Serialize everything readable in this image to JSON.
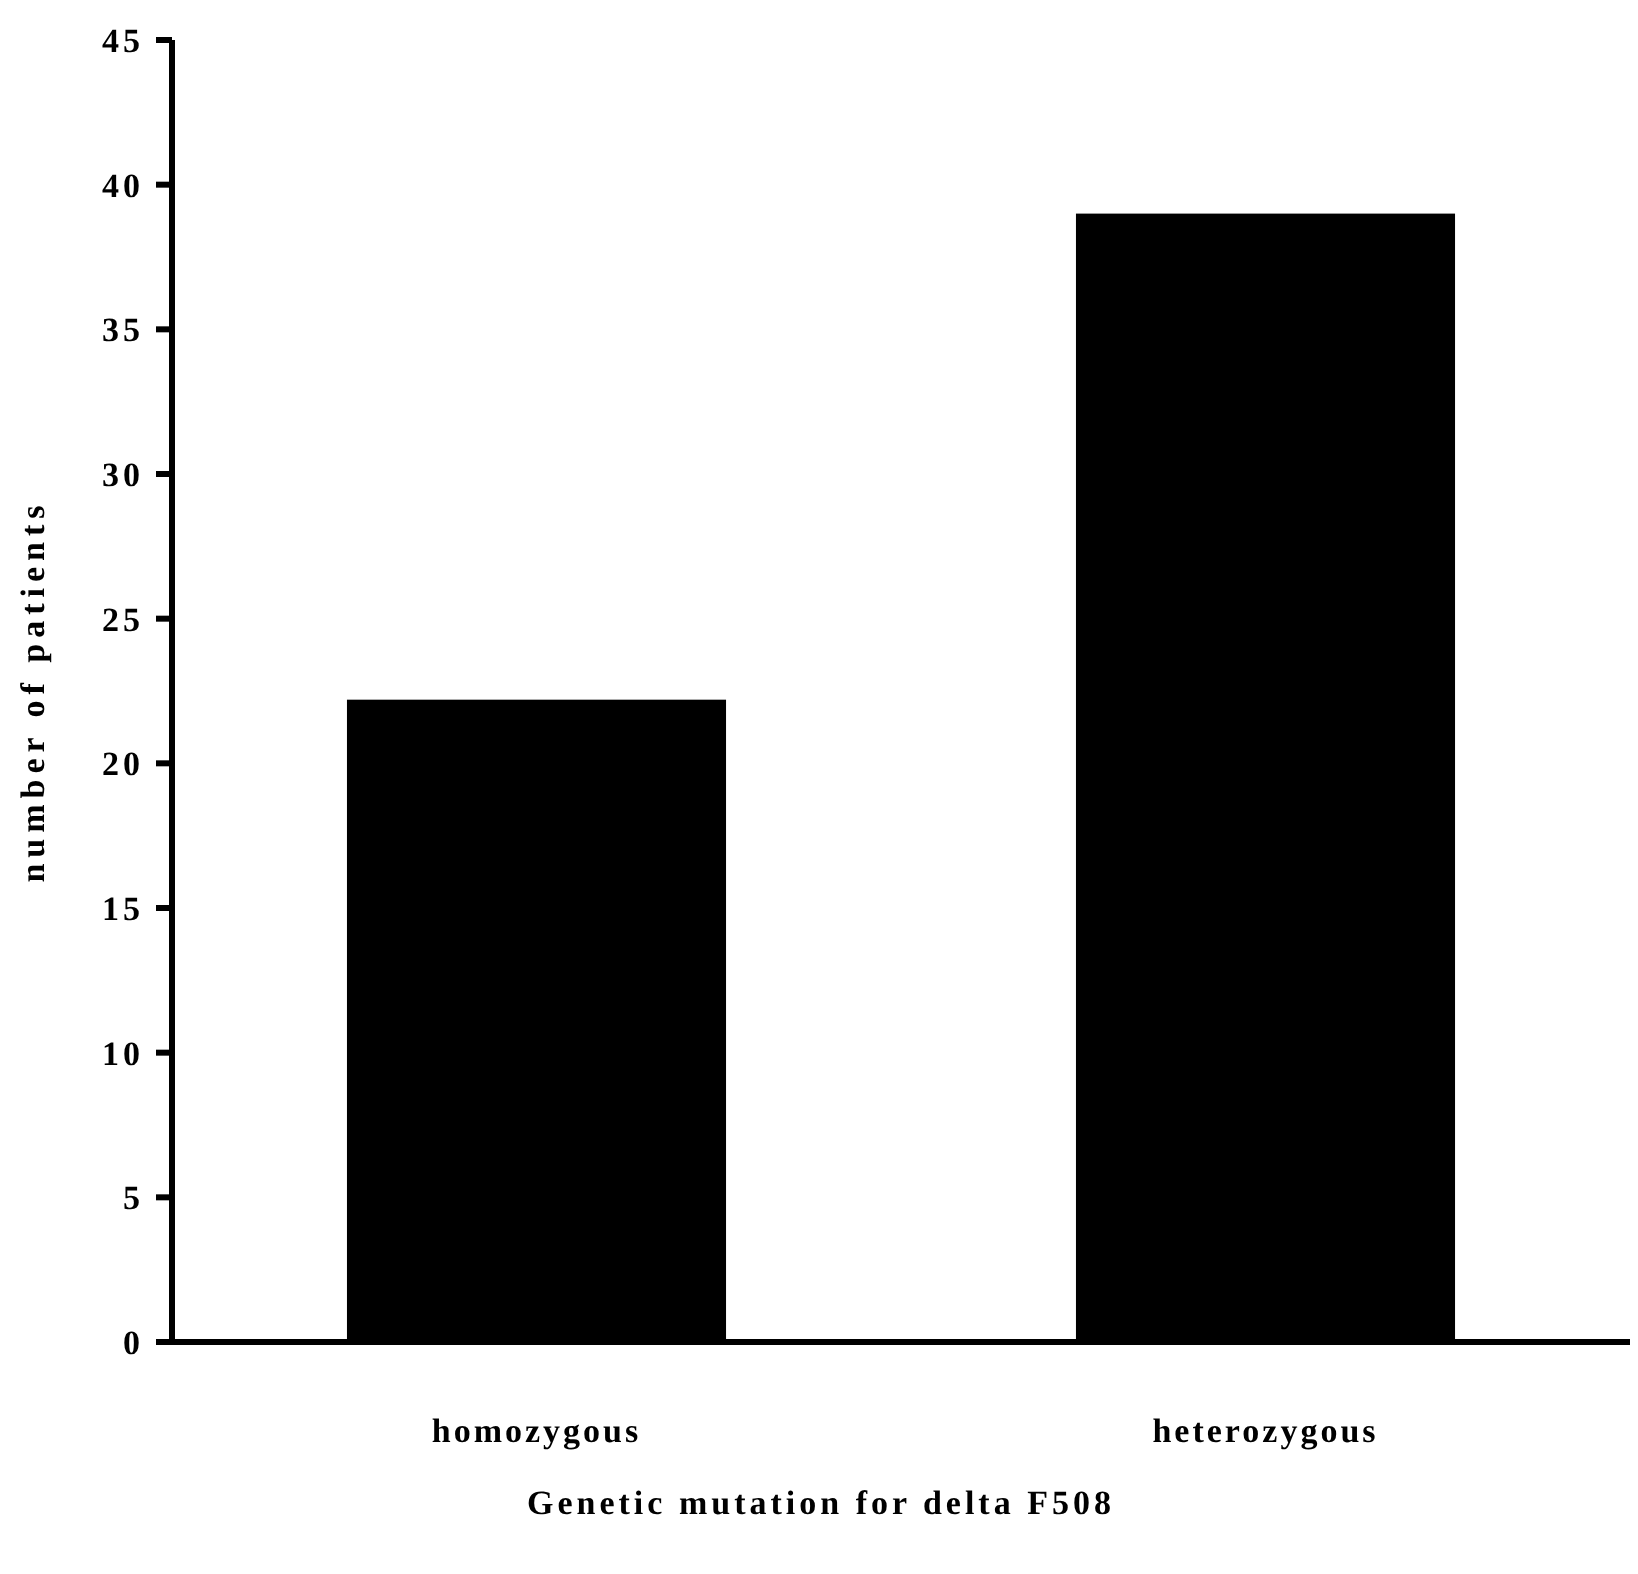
{
  "chart_data": {
    "type": "bar",
    "xlabel": "Genetic mutation for delta F508",
    "ylabel": "number of patients",
    "categories": [
      "homozygous",
      "heterozygous"
    ],
    "values": [
      22.2,
      39
    ],
    "color": "#000000",
    "ylim": [
      0,
      45
    ],
    "yticks": [
      0,
      5,
      10,
      15,
      20,
      25,
      30,
      35,
      40,
      45
    ],
    "grid": false
  }
}
